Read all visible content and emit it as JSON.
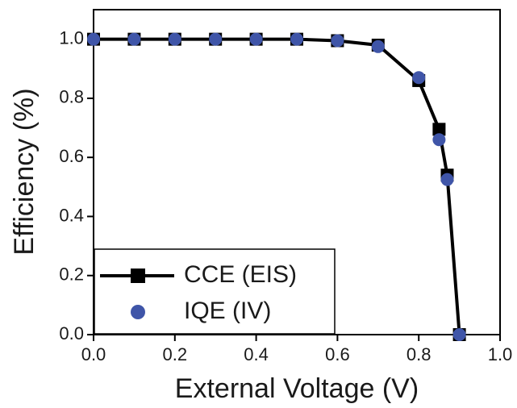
{
  "chart_data": {
    "type": "line",
    "x_label": "External Voltage (V)",
    "y_label": "Efficiency (%)",
    "x": [
      0,
      0.1,
      0.2,
      0.3,
      0.4,
      0.5,
      0.6,
      0.7,
      0.8,
      0.85,
      0.87,
      0.9
    ],
    "series": [
      {
        "name": "CCE (EIS)",
        "color": "#000000",
        "marker": "square",
        "line": true,
        "values": [
          1.0,
          1.0,
          1.0,
          1.0,
          1.0,
          1.0,
          0.995,
          0.98,
          0.86,
          0.695,
          0.54,
          0.0
        ]
      },
      {
        "name": "IQE (IV)",
        "color": "#3f55a8",
        "marker": "circle",
        "line": false,
        "values": [
          1.0,
          1.0,
          1.0,
          1.0,
          1.0,
          1.0,
          0.995,
          0.975,
          0.87,
          0.66,
          0.525,
          0.0
        ]
      }
    ],
    "xlim": [
      0,
      1.0
    ],
    "ylim": [
      0,
      1.1
    ],
    "xticks": [
      {
        "value": 0,
        "label": "0.0"
      },
      0.2,
      0.4,
      0.6,
      0.8,
      {
        "value": 1.0,
        "label": "1.0"
      }
    ],
    "yticks": [
      {
        "value": 0,
        "label": "0.0"
      },
      0.2,
      0.4,
      0.6,
      0.8,
      {
        "value": 1.0,
        "label": "1.0"
      }
    ],
    "legend": "lower-left"
  }
}
